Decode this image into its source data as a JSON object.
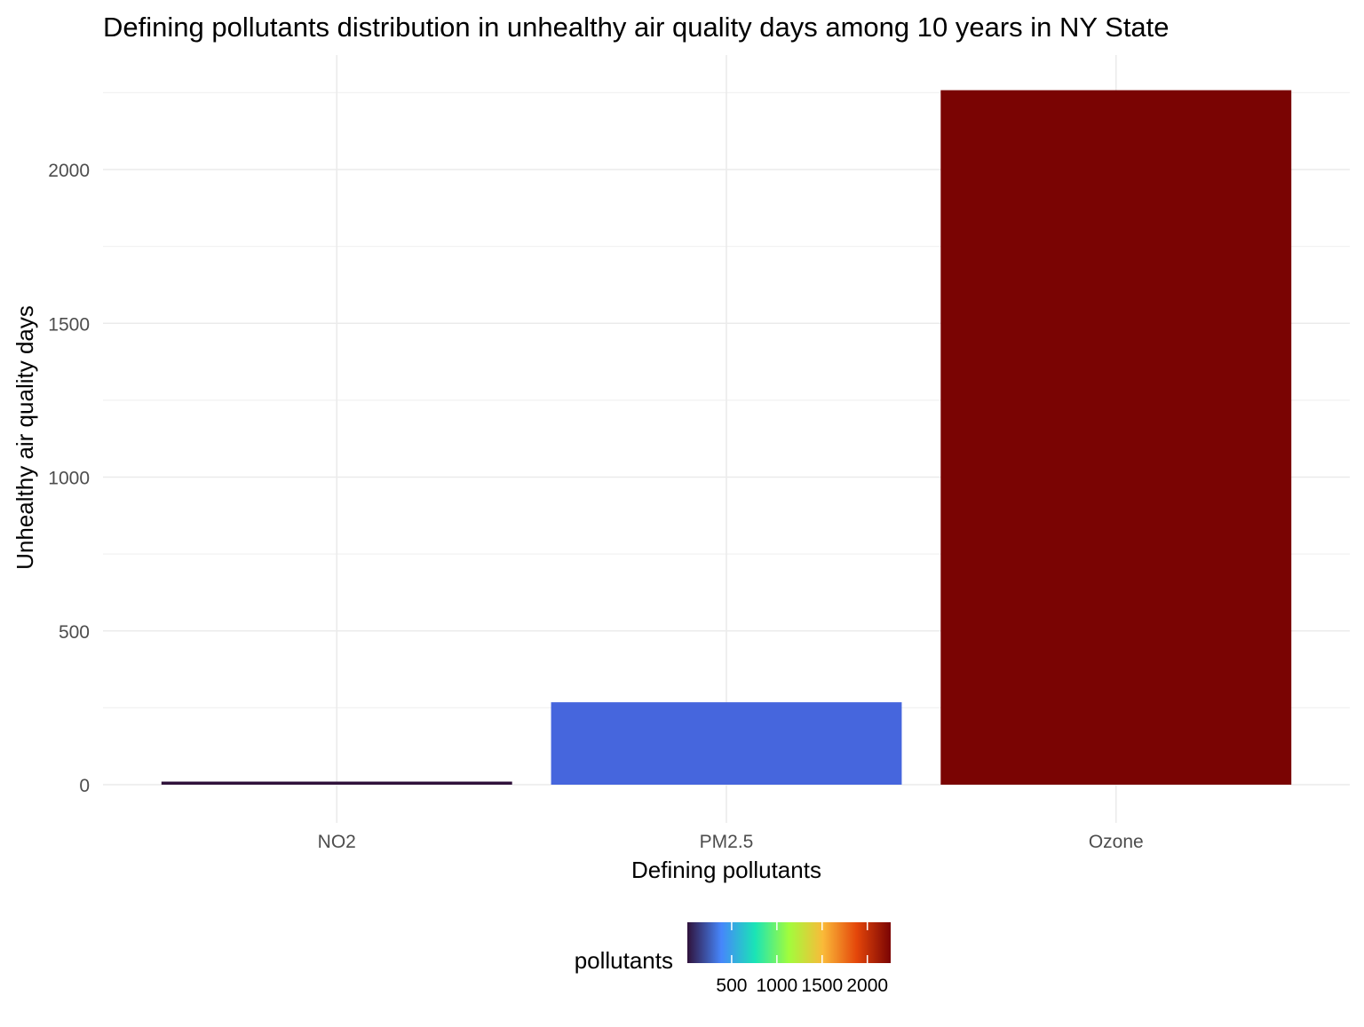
{
  "chart_data": {
    "type": "bar",
    "title": "Defining pollutants distribution in unhealthy air quality days among 10 years in NY State",
    "xlabel": "Defining pollutants",
    "ylabel": "Unhealthy air quality days",
    "categories": [
      "NO2",
      "PM2.5",
      "Ozone"
    ],
    "values": [
      10,
      268,
      2258
    ],
    "ylim": [
      0,
      2258
    ],
    "yticks": [
      0,
      500,
      1000,
      1500,
      2000
    ],
    "ytick_labels": [
      "0",
      "500",
      "1000",
      "1500",
      "2000"
    ],
    "grid": true,
    "colors": [
      "#30123b",
      "#4666dd",
      "#7a0403"
    ],
    "legend": {
      "title": "pollutants",
      "position": "bottom",
      "type": "colorbar",
      "scale": "turbo",
      "range": [
        10,
        2258
      ],
      "ticks": [
        500,
        1000,
        1500,
        2000
      ],
      "tick_labels": [
        "500",
        "1000",
        "1500",
        "2000"
      ],
      "gradient_colors": [
        "#30123b",
        "#4686fb",
        "#1ae4b6",
        "#a2fc3c",
        "#faba39",
        "#e4460a",
        "#7a0403"
      ]
    }
  }
}
